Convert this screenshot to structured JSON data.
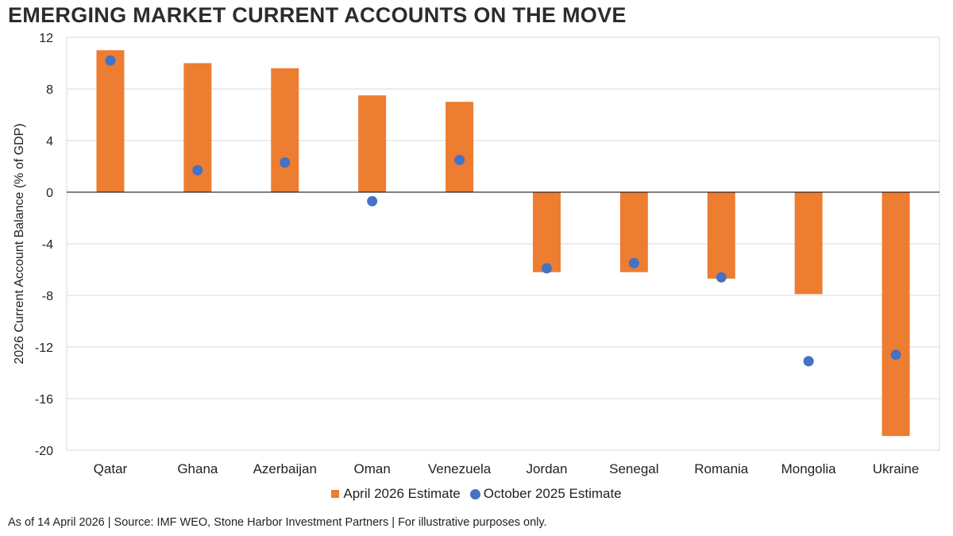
{
  "header": {
    "title": "EMERGING MARKET CURRENT ACCOUNTS ON THE MOVE"
  },
  "footer": {
    "note": "As of 14 April 2026 | Source: IMF WEO, Stone Harbor Investment Partners | For illustrative purposes only."
  },
  "colors": {
    "bar": "#ED7D31",
    "dot": "#4472C4",
    "grid": "#d9d9d9",
    "axis": "#000000"
  },
  "chart_data": {
    "type": "bar",
    "title": "EMERGING MARKET CURRENT ACCOUNTS ON THE MOVE",
    "xlabel": "",
    "ylabel": "2026 Current Account Balance (% of GDP)",
    "ylim": [
      -20,
      12
    ],
    "yticks": [
      "12",
      "8",
      "4",
      "0",
      "-4",
      "-8",
      "-12",
      "-16",
      "-20"
    ],
    "grid": true,
    "legend_position": "bottom",
    "categories": [
      "Qatar",
      "Ghana",
      "Azerbaijan",
      "Oman",
      "Venezuela",
      "Jordan",
      "Senegal",
      "Romania",
      "Mongolia",
      "Ukraine"
    ],
    "series": [
      {
        "name": "April 2026 Estimate",
        "type": "bar",
        "values": [
          11.0,
          10.0,
          9.6,
          7.5,
          7.0,
          -6.2,
          -6.2,
          -6.7,
          -7.9,
          -18.9
        ]
      },
      {
        "name": "October 2025 Estimate",
        "type": "scatter",
        "values": [
          10.2,
          1.7,
          2.3,
          -0.7,
          2.5,
          -5.9,
          -5.5,
          -6.6,
          -13.1,
          -12.6
        ]
      }
    ]
  }
}
